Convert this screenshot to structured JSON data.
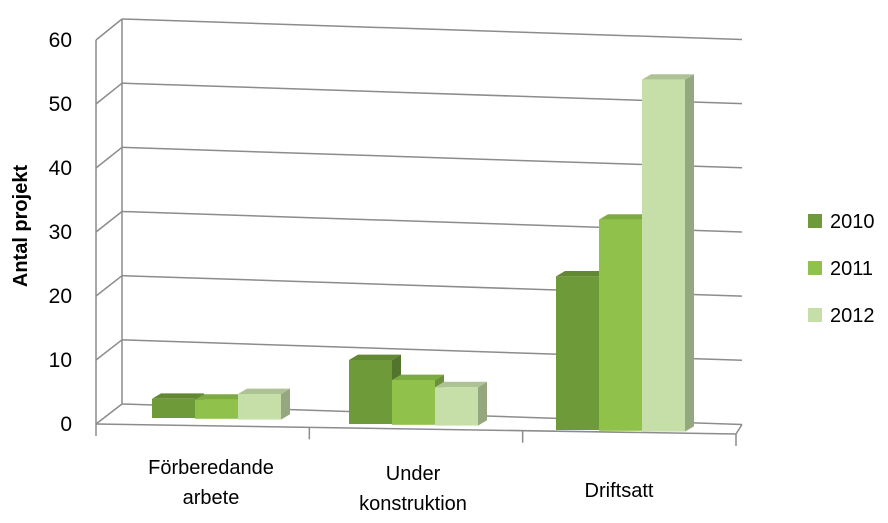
{
  "chart_data": {
    "type": "bar",
    "ylabel": "Antal projekt",
    "xlabel": "",
    "ylim": [
      0,
      60
    ],
    "yticks": [
      "0",
      "10",
      "20",
      "30",
      "40",
      "50",
      "60"
    ],
    "categories": [
      [
        "Förberedande",
        "arbete"
      ],
      [
        "Under",
        "konstruktion"
      ],
      [
        "Driftsatt"
      ]
    ],
    "series": [
      {
        "name": "2010",
        "values": [
          3,
          10,
          24
        ],
        "color": "#6f9a39"
      },
      {
        "name": "2011",
        "values": [
          3,
          7,
          33
        ],
        "color": "#8fc14b"
      },
      {
        "name": "2012",
        "values": [
          4,
          6,
          55
        ],
        "color": "#c6dea8"
      }
    ],
    "legend": "right",
    "grid": true
  }
}
